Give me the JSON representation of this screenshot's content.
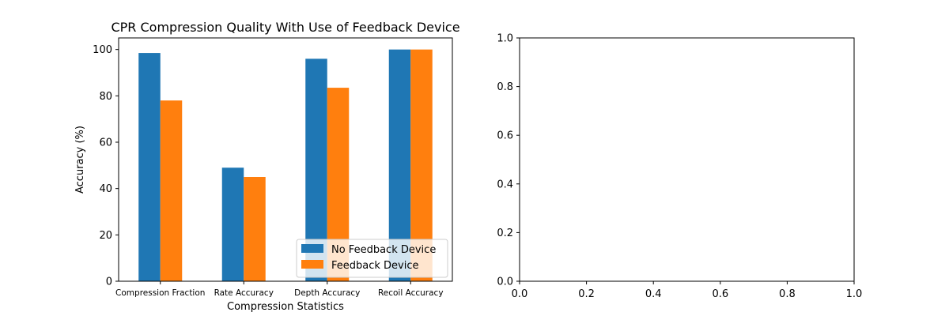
{
  "chart_data": [
    {
      "type": "bar",
      "title": "CPR Compression Quality With Use of Feedback Device",
      "xlabel": "Compression Statistics",
      "ylabel": "Accuracy (%)",
      "categories": [
        "Compression Fraction",
        "Rate Accuracy",
        "Depth Accuracy",
        "Recoil Accuracy"
      ],
      "series": [
        {
          "name": "No Feedback Device",
          "values": [
            98.5,
            49,
            96,
            100
          ],
          "color": "#1f77b4"
        },
        {
          "name": "Feedback Device",
          "values": [
            78,
            45,
            83.5,
            100
          ],
          "color": "#ff7f0e"
        }
      ],
      "ylim": [
        0,
        105
      ],
      "yticks": [
        0,
        20,
        40,
        60,
        80,
        100
      ],
      "legend": "lower-right",
      "grid": false
    },
    {
      "type": "empty",
      "title": "",
      "xlim": [
        0,
        1
      ],
      "ylim": [
        0,
        1
      ],
      "xticks": [
        "0.0",
        "0.2",
        "0.4",
        "0.6",
        "0.8",
        "1.0"
      ],
      "yticks": [
        "0.0",
        "0.2",
        "0.4",
        "0.6",
        "0.8",
        "1.0"
      ],
      "grid": false
    }
  ]
}
